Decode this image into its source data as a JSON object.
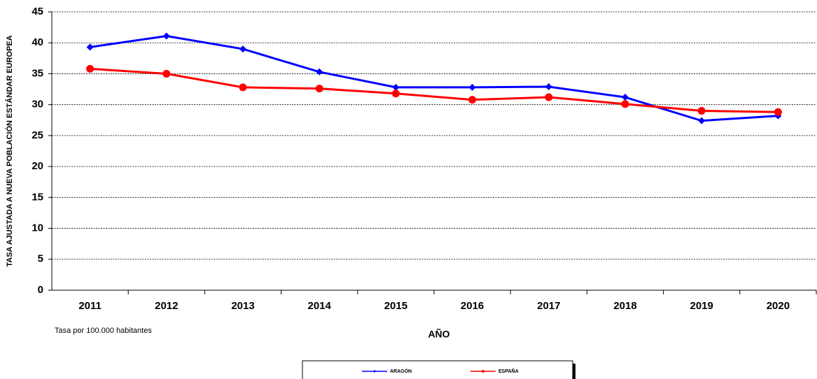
{
  "chart_data": {
    "type": "line",
    "y_label": "TASA AJUSTADA A NUEVA POBLACIÓN ESTÁNDAR EUROPEA",
    "x_label": "AÑO",
    "note": "Tasa por 100.000 habitantes",
    "categories": [
      "2011",
      "2012",
      "2013",
      "2014",
      "2015",
      "2016",
      "2017",
      "2018",
      "2019",
      "2020"
    ],
    "series": [
      {
        "name": "ARAGÓN",
        "color": "#0000ff",
        "marker": "diamond",
        "values": [
          39.3,
          41.1,
          39.0,
          35.3,
          32.8,
          32.8,
          32.9,
          31.2,
          27.4,
          28.2
        ]
      },
      {
        "name": "ESPAÑA",
        "color": "#ff0000",
        "marker": "circle",
        "values": [
          35.8,
          35.0,
          32.8,
          32.6,
          31.8,
          30.8,
          31.2,
          30.1,
          29.0,
          28.8
        ]
      }
    ],
    "ylim": [
      0,
      45
    ],
    "yticks": [
      0,
      5,
      10,
      15,
      20,
      25,
      30,
      35,
      40,
      45
    ],
    "grid": true,
    "legend": "bottom"
  }
}
